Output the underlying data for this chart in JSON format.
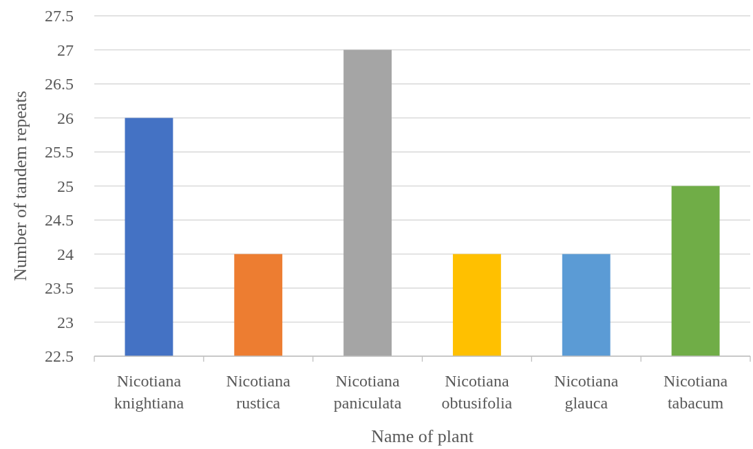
{
  "chart_data": {
    "type": "bar",
    "xlabel": "Name of plant",
    "ylabel": "Number of tandem repeats",
    "categories": [
      "Nicotiana knightiana",
      "Nicotiana rustica",
      "Nicotiana paniculata",
      "Nicotiana obtusifolia",
      "Nicotiana glauca",
      "Nicotiana tabacum"
    ],
    "values": [
      26,
      24,
      27,
      24,
      24,
      25
    ],
    "colors": [
      "#4472c4",
      "#ed7d31",
      "#a5a5a5",
      "#ffc000",
      "#5b9bd5",
      "#70ad47"
    ],
    "ylim": [
      22.5,
      27.5
    ],
    "yticks": [
      22.5,
      23,
      23.5,
      24,
      24.5,
      25,
      25.5,
      26,
      26.5,
      27,
      27.5
    ],
    "grid": "y"
  }
}
